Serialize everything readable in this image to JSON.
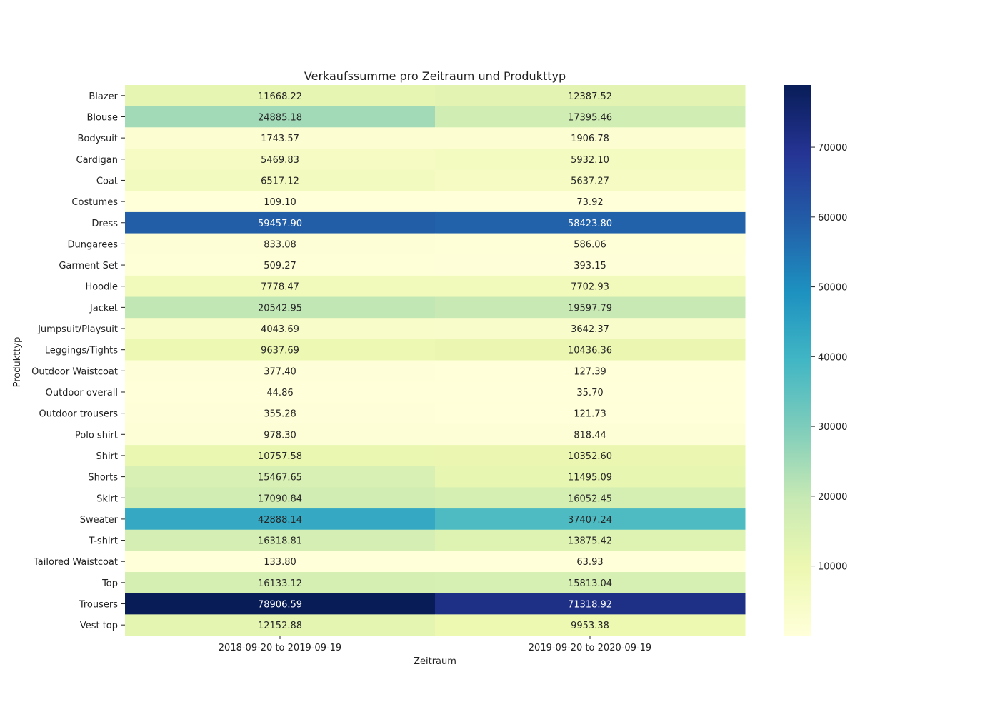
{
  "chart_data": {
    "type": "heatmap",
    "title": "Verkaufssumme pro Zeitraum und Produkttyp",
    "xlabel": "Zeitraum",
    "ylabel": "Produkttyp",
    "colormap": "YlGnBu",
    "x": [
      "2018-09-20 to 2019-09-19",
      "2019-09-20 to 2020-09-19"
    ],
    "y": [
      "Blazer",
      "Blouse",
      "Bodysuit",
      "Cardigan",
      "Coat",
      "Costumes",
      "Dress",
      "Dungarees",
      "Garment Set",
      "Hoodie",
      "Jacket",
      "Jumpsuit/Playsuit",
      "Leggings/Tights",
      "Outdoor Waistcoat",
      "Outdoor overall",
      "Outdoor trousers",
      "Polo shirt",
      "Shirt",
      "Shorts",
      "Skirt",
      "Sweater",
      "T-shirt",
      "Tailored Waistcoat",
      "Top",
      "Trousers",
      "Vest top"
    ],
    "values": [
      [
        11668.22,
        12387.52
      ],
      [
        24885.18,
        17395.46
      ],
      [
        1743.57,
        1906.78
      ],
      [
        5469.83,
        5932.1
      ],
      [
        6517.12,
        5637.27
      ],
      [
        109.1,
        73.92
      ],
      [
        59457.9,
        58423.8
      ],
      [
        833.08,
        586.06
      ],
      [
        509.27,
        393.15
      ],
      [
        7778.47,
        7702.93
      ],
      [
        20542.95,
        19597.79
      ],
      [
        4043.69,
        3642.37
      ],
      [
        9637.69,
        10436.36
      ],
      [
        377.4,
        127.39
      ],
      [
        44.86,
        35.7
      ],
      [
        355.28,
        121.73
      ],
      [
        978.3,
        818.44
      ],
      [
        10757.58,
        10352.6
      ],
      [
        15467.65,
        11495.09
      ],
      [
        17090.84,
        16052.45
      ],
      [
        42888.14,
        37407.24
      ],
      [
        16318.81,
        13875.42
      ],
      [
        133.8,
        63.93
      ],
      [
        16133.12,
        15813.04
      ],
      [
        78906.59,
        71318.92
      ],
      [
        12152.88,
        9953.38
      ]
    ],
    "value_labels": [
      [
        "11668.22",
        "12387.52"
      ],
      [
        "24885.18",
        "17395.46"
      ],
      [
        "1743.57",
        "1906.78"
      ],
      [
        "5469.83",
        "5932.10"
      ],
      [
        "6517.12",
        "5637.27"
      ],
      [
        "109.10",
        "73.92"
      ],
      [
        "59457.90",
        "58423.80"
      ],
      [
        "833.08",
        "586.06"
      ],
      [
        "509.27",
        "393.15"
      ],
      [
        "7778.47",
        "7702.93"
      ],
      [
        "20542.95",
        "19597.79"
      ],
      [
        "4043.69",
        "3642.37"
      ],
      [
        "9637.69",
        "10436.36"
      ],
      [
        "377.40",
        "127.39"
      ],
      [
        "44.86",
        "35.70"
      ],
      [
        "355.28",
        "121.73"
      ],
      [
        "978.30",
        "818.44"
      ],
      [
        "10757.58",
        "10352.60"
      ],
      [
        "15467.65",
        "11495.09"
      ],
      [
        "17090.84",
        "16052.45"
      ],
      [
        "42888.14",
        "37407.24"
      ],
      [
        "16318.81",
        "13875.42"
      ],
      [
        "133.80",
        "63.93"
      ],
      [
        "16133.12",
        "15813.04"
      ],
      [
        "78906.59",
        "71318.92"
      ],
      [
        "12152.88",
        "9953.38"
      ]
    ],
    "colorbar": {
      "min": 35.7,
      "max": 78906.59,
      "ticks": [
        10000,
        20000,
        30000,
        40000,
        50000,
        60000,
        70000
      ],
      "tick_labels": [
        "10000",
        "20000",
        "30000",
        "40000",
        "50000",
        "60000",
        "70000"
      ]
    }
  }
}
